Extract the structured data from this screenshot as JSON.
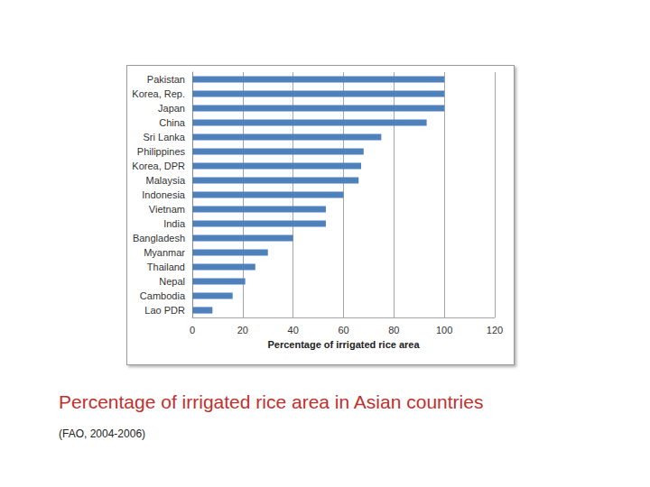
{
  "chart_data": {
    "type": "bar",
    "orientation": "horizontal",
    "title": "Percentage of irrigated rice area in Asian countries",
    "subtitle": "(FAO, 2004-2006)",
    "x_label": "Percentage of irrigated rice area",
    "categories": [
      "Pakistan",
      "Korea, Rep.",
      "Japan",
      "China",
      "Sri Lanka",
      "Philippines",
      "Korea, DPR",
      "Malaysia",
      "Indonesia",
      "Vietnam",
      "India",
      "Bangladesh",
      "Myanmar",
      "Thailand",
      "Nepal",
      "Cambodia",
      "Lao PDR"
    ],
    "values": [
      100,
      100,
      100,
      93,
      75,
      68,
      67,
      66,
      60,
      53,
      53,
      40,
      30,
      25,
      21,
      16,
      8
    ],
    "color": "#4f81bd",
    "xlim": [
      0,
      120
    ],
    "xticks": [
      0,
      20,
      40,
      60,
      80,
      100,
      120
    ],
    "grid": true
  }
}
